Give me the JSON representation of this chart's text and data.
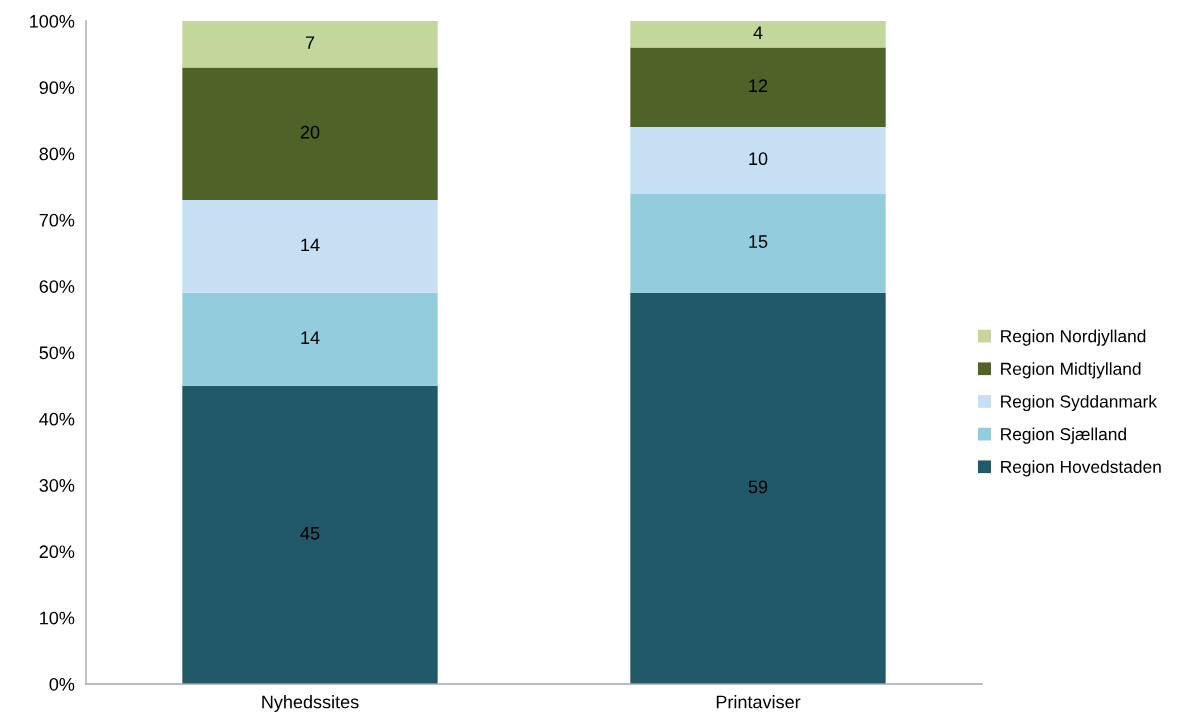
{
  "chart_data": {
    "type": "bar",
    "stacked": true,
    "categories": [
      "Nyhedssites",
      "Printaviser"
    ],
    "series": [
      {
        "name": "Region Hovedstaden",
        "color": "#215968",
        "values": [
          45,
          59
        ]
      },
      {
        "name": "Region Sjælland",
        "color": "#93cddd",
        "values": [
          14,
          15
        ]
      },
      {
        "name": "Region Syddanmark",
        "color": "#c6dff2",
        "values": [
          14,
          10
        ]
      },
      {
        "name": "Region Midtjylland",
        "color": "#4f6228",
        "values": [
          20,
          12
        ]
      },
      {
        "name": "Region Nordjylland",
        "color": "#c3d69b",
        "values": [
          7,
          4
        ]
      }
    ],
    "ylim": [
      0,
      100
    ],
    "yticks": [
      {
        "value": 0,
        "label": "0%"
      },
      {
        "value": 10,
        "label": "10%"
      },
      {
        "value": 20,
        "label": "20%"
      },
      {
        "value": 30,
        "label": "30%"
      },
      {
        "value": 40,
        "label": "40%"
      },
      {
        "value": 50,
        "label": "50%"
      },
      {
        "value": 60,
        "label": "60%"
      },
      {
        "value": 70,
        "label": "70%"
      },
      {
        "value": 80,
        "label": "80%"
      },
      {
        "value": 90,
        "label": "90%"
      },
      {
        "value": 100,
        "label": "100%"
      }
    ],
    "data_labels": true,
    "grid": false,
    "legend": "right"
  }
}
